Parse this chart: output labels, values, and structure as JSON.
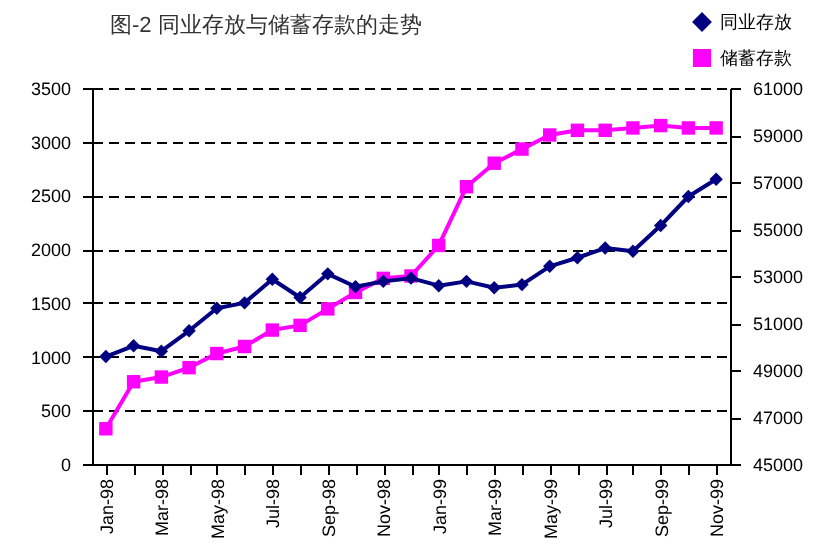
{
  "chart_data": {
    "type": "line",
    "title": "图-2    同业存放与储蓄存款的走势",
    "categories": [
      "Jan-98",
      null,
      "Mar-98",
      null,
      "May-98",
      null,
      "Jul-98",
      null,
      "Sep-98",
      null,
      "Nov-98",
      null,
      "Jan-99",
      null,
      "Mar-99",
      null,
      "May-99",
      null,
      "Jul-99",
      null,
      "Sep-99",
      null,
      "Nov-99"
    ],
    "series": [
      {
        "name": "同业存放",
        "color": "#000080",
        "marker": "diamond",
        "values": [
          1000,
          1100,
          1050,
          1240,
          1450,
          1500,
          1720,
          1550,
          1770,
          1650,
          1700,
          1730,
          1660,
          1700,
          1640,
          1670,
          1840,
          1920,
          2010,
          1980,
          2220,
          2490,
          2650
        ]
      },
      {
        "name": "储蓄存款",
        "color": "#ff00ff",
        "marker": "square",
        "axis": "y2",
        "values": [
          46500,
          48500,
          48700,
          49100,
          49700,
          50000,
          50700,
          50900,
          51600,
          52300,
          52900,
          53000,
          54300,
          56800,
          57800,
          58400,
          59000,
          59200,
          59200,
          59300,
          59400,
          59300,
          59300
        ]
      }
    ],
    "ylim": [
      0,
      3500
    ],
    "yticks": [
      0,
      500,
      1000,
      1500,
      2000,
      2500,
      3000,
      3500
    ],
    "y2lim": [
      45000,
      61000
    ],
    "y2ticks": [
      45000,
      47000,
      49000,
      51000,
      53000,
      55000,
      57000,
      59000,
      61000
    ],
    "grid": "y",
    "legend": "top right"
  }
}
